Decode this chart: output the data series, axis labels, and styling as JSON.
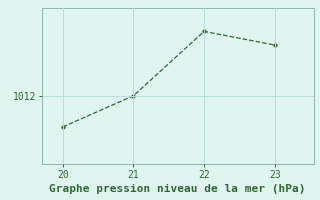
{
  "x": [
    20,
    21,
    22,
    23
  ],
  "y": [
    1010.4,
    1012.0,
    1015.3,
    1014.6
  ],
  "line_color": "#2d6a2d",
  "marker_color": "#2d6a2d",
  "bg_color": "#e0f5f0",
  "grid_color": "#b8ddd8",
  "xlabel": "Graphe pression niveau de la mer (hPa)",
  "xlabel_color": "#2d6a2d",
  "ytick_labels": [
    "1012"
  ],
  "ytick_values": [
    1012
  ],
  "xtick_values": [
    20,
    21,
    22,
    23
  ],
  "xlim": [
    19.7,
    23.55
  ],
  "ylim": [
    1008.5,
    1016.5
  ],
  "axis_color": "#8ab8b0",
  "tick_color": "#2d6a2d",
  "xlabel_fontsize": 8,
  "tick_fontsize": 7
}
